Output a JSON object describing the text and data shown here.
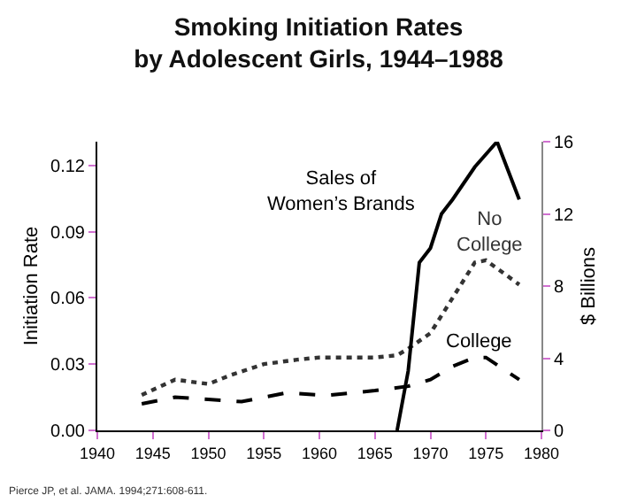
{
  "chart_data": {
    "type": "line",
    "title": "Smoking Initiation Rates\nby Adolescent Girls, 1944–1988",
    "ylabel": "Initiation Rate",
    "y2label": "$ Billions",
    "xlim": [
      1940,
      1980
    ],
    "xticks": [
      1940,
      1945,
      1950,
      1955,
      1960,
      1965,
      1970,
      1975,
      1980
    ],
    "ylim": [
      0,
      0.1307
    ],
    "yticks": [
      {
        "value": 0,
        "label": "0.00"
      },
      {
        "value": 0.03,
        "label": "0.03"
      },
      {
        "value": 0.06,
        "label": "0.06"
      },
      {
        "value": 0.09,
        "label": "0.09"
      },
      {
        "value": 0.12,
        "label": "0.12"
      }
    ],
    "y2lim": [
      0,
      16
    ],
    "y2ticks": [
      0,
      4,
      8,
      12,
      16
    ],
    "grid": false,
    "legend": false,
    "marker": "none",
    "series": [
      {
        "name": "Sales of\nWomen’s Brands",
        "color": "#000000",
        "line_style": "solid",
        "axis": "y2",
        "x": [
          1967,
          1968,
          1969,
          1970,
          1971,
          1972,
          1974,
          1976,
          1978
        ],
        "values": [
          0,
          3.3,
          9.3,
          10.1,
          12.0,
          12.8,
          14.6,
          16.0,
          12.8
        ]
      },
      {
        "name": "No\nCollege",
        "color": "#333333",
        "line_style": "dotted",
        "x": [
          1944,
          1947,
          1950,
          1952,
          1955,
          1958,
          1960,
          1962,
          1965,
          1967,
          1968,
          1970,
          1972,
          1974,
          1975,
          1978
        ],
        "values": [
          0.016,
          0.023,
          0.021,
          0.025,
          0.03,
          0.032,
          0.033,
          0.033,
          0.033,
          0.034,
          0.037,
          0.044,
          0.06,
          0.076,
          0.077,
          0.066
        ]
      },
      {
        "name": "College",
        "color": "#000000",
        "line_style": "dashed",
        "x": [
          1944,
          1947,
          1950,
          1953,
          1955,
          1957,
          1960,
          1961,
          1965,
          1968,
          1970,
          1972,
          1974,
          1975,
          1978
        ],
        "values": [
          0.012,
          0.015,
          0.014,
          0.013,
          0.015,
          0.017,
          0.016,
          0.016,
          0.018,
          0.02,
          0.023,
          0.029,
          0.033,
          0.033,
          0.023
        ]
      }
    ],
    "annotations": [
      "Pierce JP, et al. JAMA. 1994;271:608-611."
    ]
  }
}
